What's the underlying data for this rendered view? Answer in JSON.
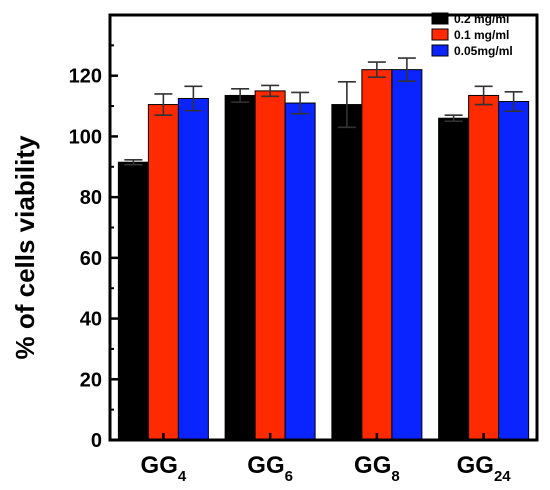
{
  "chart_data": {
    "type": "bar",
    "categories": [
      {
        "base": "GG",
        "sub": "4"
      },
      {
        "base": "GG",
        "sub": "6"
      },
      {
        "base": "GG",
        "sub": "8"
      },
      {
        "base": "GG",
        "sub": "24"
      }
    ],
    "ylabel": "% of cells viability",
    "xlabel": "",
    "ylim": [
      0,
      140
    ],
    "yticks": [
      0,
      20,
      40,
      60,
      80,
      100,
      120
    ],
    "legend_position": "top-right",
    "series": [
      {
        "name": "0.2 mg/ml",
        "color": "#000000",
        "values": [
          91.5,
          113.5,
          110.5,
          106
        ],
        "errors": [
          0.8,
          2.2,
          7.5,
          1.0
        ]
      },
      {
        "name": "0.1 mg/ml",
        "color": "#ff2a00",
        "values": [
          110.5,
          115,
          122,
          113.5
        ],
        "errors": [
          3.5,
          1.8,
          2.5,
          3.0
        ]
      },
      {
        "name": "0.05mg/ml",
        "color": "#0a24ff",
        "values": [
          112.5,
          111,
          122,
          111.5
        ],
        "errors": [
          4.0,
          3.5,
          3.8,
          3.2
        ]
      }
    ]
  }
}
